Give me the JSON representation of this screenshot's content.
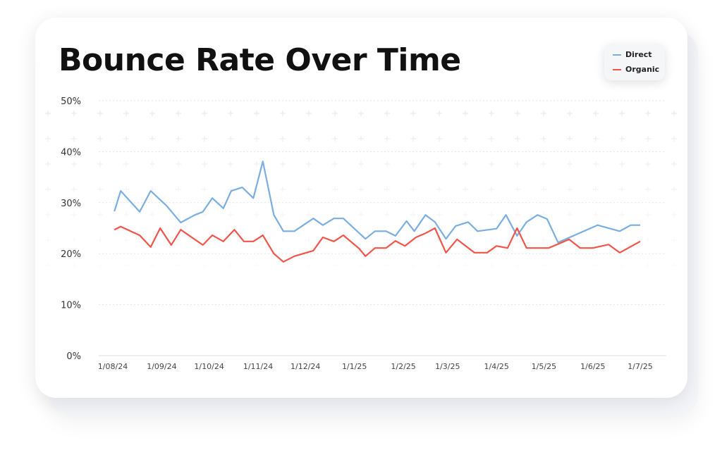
{
  "chart_data": {
    "type": "line",
    "title": "Bounce Rate Over Time",
    "xlabel": "",
    "ylabel": "",
    "ylim": [
      0,
      50
    ],
    "yticks": [
      "0%",
      "10%",
      "20%",
      "30%",
      "40%",
      "50%"
    ],
    "xlim": [
      "2024-08-01",
      "2025-07-01"
    ],
    "xticks": [
      {
        "date": "2024-08-01",
        "label": "1/08/24"
      },
      {
        "date": "2024-09-01",
        "label": "1/09/24"
      },
      {
        "date": "2024-10-01",
        "label": "1/10/24"
      },
      {
        "date": "2024-11-01",
        "label": "1/11/24"
      },
      {
        "date": "2024-12-01",
        "label": "1/12/24"
      },
      {
        "date": "2025-01-01",
        "label": "1/1/25"
      },
      {
        "date": "2025-02-01",
        "label": "1/2/25"
      },
      {
        "date": "2025-03-01",
        "label": "1/3/25"
      },
      {
        "date": "2025-04-01",
        "label": "1/4/25"
      },
      {
        "date": "2025-05-01",
        "label": "1/5/25"
      },
      {
        "date": "2025-06-01",
        "label": "1/6/25"
      },
      {
        "date": "2025-07-01",
        "label": "1/7/25"
      }
    ],
    "grid": true,
    "legend_position": "top-right",
    "series": [
      {
        "name": "Direct",
        "color": "#7aaee0",
        "x": [
          "2024-08-02",
          "2024-08-06",
          "2024-08-18",
          "2024-08-25",
          "2024-09-04",
          "2024-09-13",
          "2024-09-22",
          "2024-09-27",
          "2024-10-03",
          "2024-10-10",
          "2024-10-15",
          "2024-10-22",
          "2024-10-29",
          "2024-11-04",
          "2024-11-11",
          "2024-11-17",
          "2024-11-24",
          "2024-12-06",
          "2024-12-12",
          "2024-12-19",
          "2024-12-25",
          "2025-01-08",
          "2025-01-14",
          "2025-01-21",
          "2025-01-27",
          "2025-02-03",
          "2025-02-08",
          "2025-02-15",
          "2025-02-21",
          "2025-02-28",
          "2025-03-06",
          "2025-03-14",
          "2025-03-20",
          "2025-04-01",
          "2025-04-07",
          "2025-04-14",
          "2025-04-20",
          "2025-04-27",
          "2025-05-03",
          "2025-05-10",
          "2025-06-04",
          "2025-06-18",
          "2025-06-25",
          "2025-07-01"
        ],
        "values": [
          28.3,
          32.3,
          28.2,
          32.3,
          29.4,
          26.1,
          27.6,
          28.2,
          30.9,
          28.9,
          32.3,
          33.0,
          30.9,
          38.1,
          27.6,
          24.4,
          24.4,
          26.9,
          25.6,
          26.9,
          26.9,
          22.9,
          24.4,
          24.4,
          23.5,
          26.4,
          24.4,
          27.6,
          26.2,
          22.9,
          25.4,
          26.2,
          24.4,
          24.9,
          27.6,
          23.5,
          26.2,
          27.6,
          26.8,
          22.2,
          25.6,
          24.4,
          25.6,
          25.6
        ]
      },
      {
        "name": "Organic",
        "color": "#f0554a",
        "x": [
          "2024-08-02",
          "2024-08-06",
          "2024-08-18",
          "2024-08-25",
          "2024-08-31",
          "2024-09-07",
          "2024-09-13",
          "2024-09-27",
          "2024-10-03",
          "2024-10-10",
          "2024-10-17",
          "2024-10-23",
          "2024-10-29",
          "2024-11-04",
          "2024-11-11",
          "2024-11-17",
          "2024-11-24",
          "2024-12-06",
          "2024-12-12",
          "2024-12-19",
          "2024-12-25",
          "2025-01-04",
          "2025-01-08",
          "2025-01-14",
          "2025-01-21",
          "2025-01-27",
          "2025-02-02",
          "2025-02-09",
          "2025-02-15",
          "2025-02-21",
          "2025-02-28",
          "2025-03-07",
          "2025-03-18",
          "2025-03-26",
          "2025-04-01",
          "2025-04-08",
          "2025-04-14",
          "2025-04-20",
          "2025-05-04",
          "2025-05-17",
          "2025-05-24",
          "2025-06-01",
          "2025-06-11",
          "2025-06-18",
          "2025-07-01"
        ],
        "values": [
          24.7,
          25.3,
          23.6,
          21.3,
          25.0,
          21.7,
          24.7,
          21.7,
          23.6,
          22.4,
          24.7,
          22.4,
          22.4,
          23.6,
          20.0,
          18.4,
          19.5,
          20.6,
          23.2,
          22.4,
          23.6,
          21.0,
          19.5,
          21.1,
          21.1,
          22.5,
          21.5,
          23.2,
          24.0,
          25.0,
          20.2,
          22.8,
          20.2,
          20.2,
          21.5,
          21.1,
          25.0,
          21.1,
          21.1,
          22.8,
          21.1,
          21.1,
          21.8,
          20.2,
          22.4
        ]
      }
    ]
  }
}
